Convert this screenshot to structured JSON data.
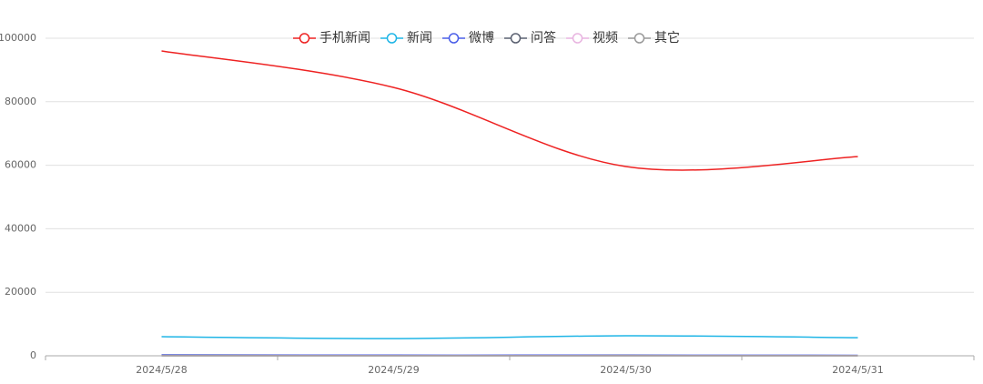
{
  "chart_data": {
    "type": "line",
    "categories": [
      "2024/5/28",
      "2024/5/29",
      "2024/5/30",
      "2024/5/31"
    ],
    "series": [
      {
        "name": "手机新闻",
        "color": "#ee2222",
        "values": [
          96000,
          84500,
          59600,
          62700
        ]
      },
      {
        "name": "新闻",
        "color": "#1fb5e6",
        "values": [
          6000,
          5400,
          6300,
          5700
        ]
      },
      {
        "name": "微博",
        "color": "#4a5ee8",
        "values": [
          300,
          200,
          200,
          150
        ]
      },
      {
        "name": "问答",
        "color": "#5a6070",
        "values": [
          100,
          80,
          90,
          70
        ]
      },
      {
        "name": "视频",
        "color": "#e8b4e0",
        "values": [
          30,
          20,
          30,
          20
        ]
      },
      {
        "name": "其它",
        "color": "#999999",
        "values": [
          10,
          10,
          10,
          10
        ]
      }
    ],
    "ylim": [
      0,
      100000
    ],
    "yticks": [
      0,
      20000,
      40000,
      60000,
      80000,
      100000
    ],
    "grid": true
  }
}
